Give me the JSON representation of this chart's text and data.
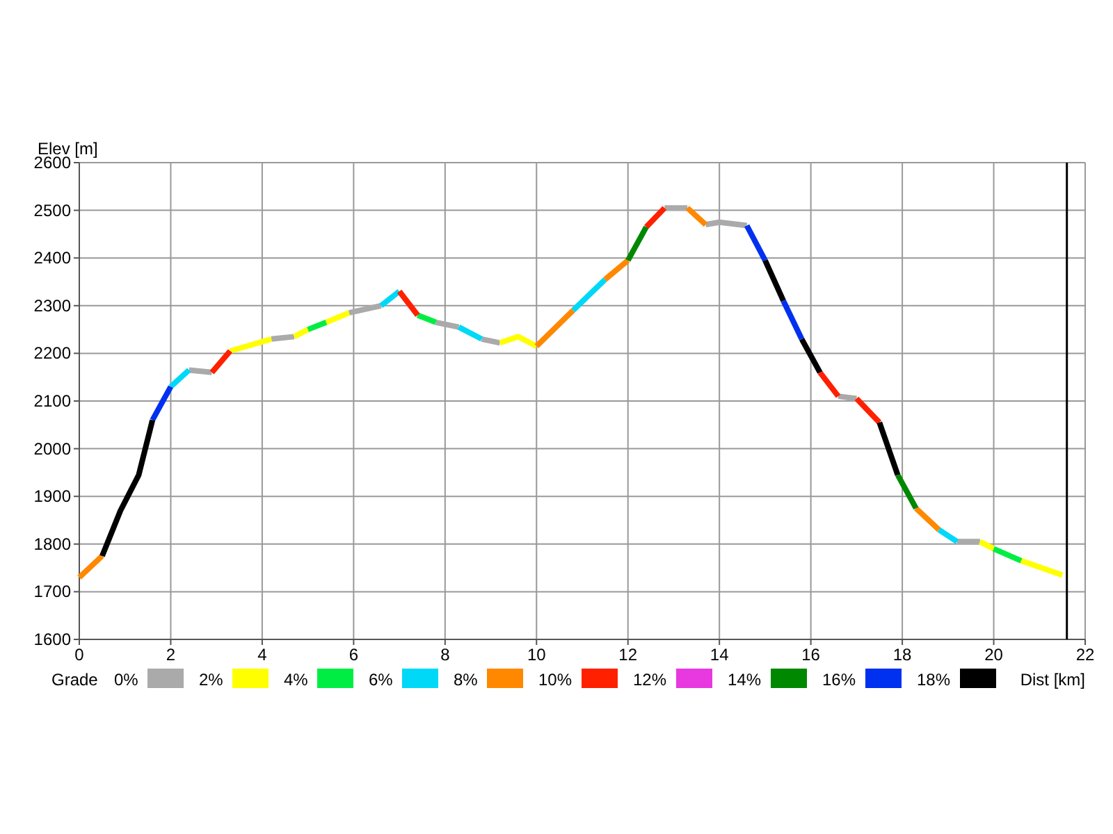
{
  "chart_data": {
    "type": "line",
    "xlabel": "Dist [km]",
    "ylabel": "Elev [m]",
    "legend_title": "Grade",
    "legend": "bottom",
    "grid": true,
    "xlim": [
      0,
      22
    ],
    "ylim": [
      1600,
      2600
    ],
    "xticks": [
      0,
      2,
      4,
      6,
      8,
      10,
      12,
      14,
      16,
      18,
      20,
      22
    ],
    "yticks": [
      1600,
      1700,
      1800,
      1900,
      2000,
      2100,
      2200,
      2300,
      2400,
      2500,
      2600
    ],
    "ref_lines": [
      {
        "axis": "x",
        "value": 21.6,
        "color": "#000000"
      }
    ],
    "series": [
      {
        "name": "0%",
        "color": "#aaaaaa",
        "x": [
          2.4,
          2.9,
          null,
          4.2,
          4.7,
          null,
          5.9,
          6.6,
          null,
          7.8,
          8.3,
          null,
          8.8,
          9.2,
          null,
          12.8,
          13.3,
          null,
          13.7,
          14.0,
          14.6,
          null,
          16.6,
          17.0,
          null,
          19.2,
          19.7
        ],
        "values": [
          2165,
          2160,
          null,
          2230,
          2235,
          null,
          2285,
          2300,
          null,
          2265,
          2255,
          null,
          2230,
          2222,
          null,
          2505,
          2505,
          null,
          2470,
          2475,
          2468,
          null,
          2110,
          2105,
          null,
          1805,
          1805
        ]
      },
      {
        "name": "2%",
        "color": "#ffff00",
        "x": [
          3.3,
          4.2,
          null,
          4.7,
          5.0,
          null,
          5.4,
          5.9,
          null,
          9.2,
          9.6,
          10.0,
          null,
          19.7,
          20.0,
          null,
          20.6,
          21.5
        ],
        "values": [
          2205,
          2230,
          null,
          2235,
          2250,
          null,
          2265,
          2285,
          null,
          2222,
          2235,
          2215,
          null,
          1805,
          1790,
          null,
          1765,
          1735
        ]
      },
      {
        "name": "4%",
        "color": "#00ee44",
        "x": [
          5.0,
          5.4,
          null,
          7.4,
          7.8,
          null,
          20.0,
          20.6
        ],
        "values": [
          2250,
          2265,
          null,
          2280,
          2265,
          null,
          1790,
          1765
        ]
      },
      {
        "name": "6%",
        "color": "#00d8f8",
        "x": [
          2.0,
          2.4,
          null,
          6.6,
          7.0,
          null,
          8.3,
          8.8,
          null,
          10.8,
          11.5,
          null,
          18.8,
          19.2
        ],
        "values": [
          2130,
          2165,
          null,
          2300,
          2330,
          null,
          2255,
          2230,
          null,
          2290,
          2355,
          null,
          1830,
          1805
        ]
      },
      {
        "name": "8%",
        "color": "#ff8800",
        "x": [
          0,
          0.5,
          null,
          10.0,
          10.8,
          null,
          11.5,
          12.0,
          null,
          13.3,
          13.7,
          null,
          18.3,
          18.8
        ],
        "values": [
          1730,
          1775,
          null,
          2215,
          2290,
          null,
          2355,
          2395,
          null,
          2505,
          2470,
          null,
          1875,
          1830
        ]
      },
      {
        "name": "10%",
        "color": "#ff2000",
        "x": [
          2.9,
          3.3,
          null,
          7.0,
          7.4,
          null,
          12.4,
          12.8,
          null,
          16.2,
          16.6,
          null,
          17.0,
          17.5
        ],
        "values": [
          2160,
          2205,
          null,
          2330,
          2280,
          null,
          2465,
          2505,
          null,
          2160,
          2110,
          null,
          2105,
          2055
        ]
      },
      {
        "name": "12%",
        "color": "#e838e0"
      },
      {
        "name": "14%",
        "color": "#008800",
        "x": [
          12.0,
          12.4,
          null,
          17.9,
          18.3
        ],
        "values": [
          2395,
          2465,
          null,
          1945,
          1875
        ]
      },
      {
        "name": "16%",
        "color": "#0030f0",
        "x": [
          1.6,
          2.0,
          null,
          14.6,
          15.0,
          null,
          15.4,
          15.8
        ],
        "values": [
          2060,
          2130,
          null,
          2468,
          2395,
          null,
          2310,
          2230
        ]
      },
      {
        "name": "18%",
        "color": "#000000",
        "x": [
          0.5,
          0.9,
          1.3,
          1.6,
          null,
          15.0,
          15.4,
          null,
          15.8,
          16.2,
          null,
          17.5,
          17.9
        ],
        "values": [
          1775,
          1870,
          1945,
          2060,
          null,
          2395,
          2310,
          null,
          2230,
          2160,
          null,
          2055,
          1945
        ]
      }
    ]
  }
}
